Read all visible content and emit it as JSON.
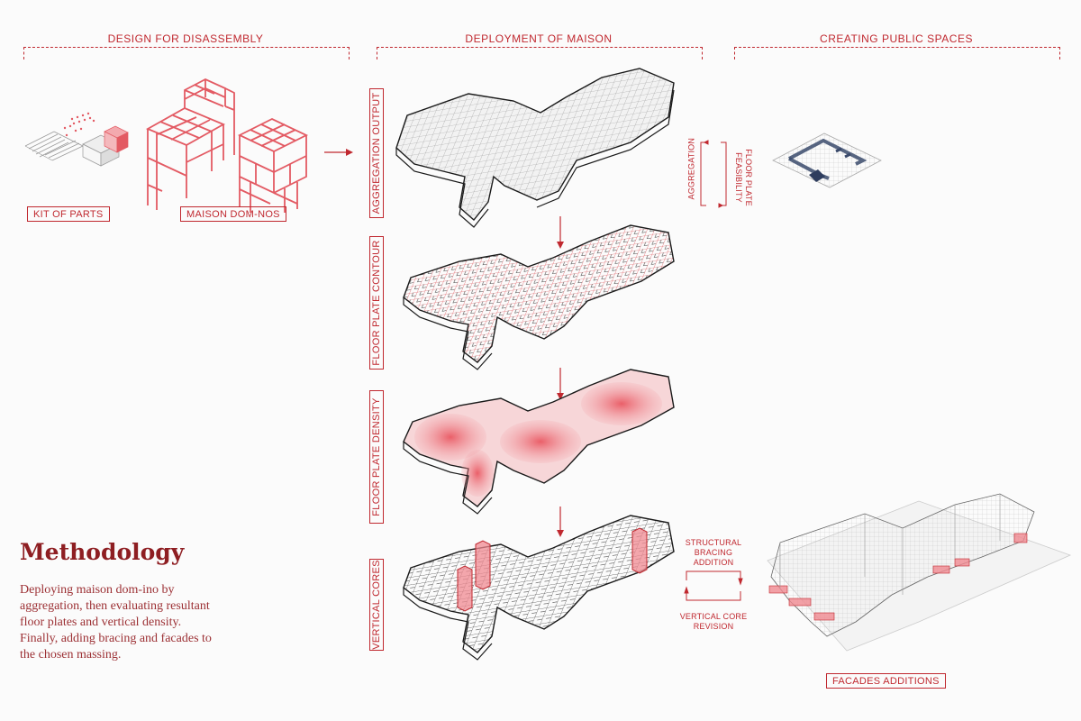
{
  "sections": {
    "design": "DESIGN FOR DISASSEMBLY",
    "deployment": "DEPLOYMENT OF MAISON",
    "public": "CREATING PUBLIC SPACES"
  },
  "labels": {
    "kit_of_parts": "KIT OF PARTS",
    "maison": "MAISON DOM-NOS",
    "facades": "FACADES ADDITIONS"
  },
  "steps": [
    {
      "label": "AGGREGATION OUTPUT"
    },
    {
      "label": "FLOOR PLATE CONTOUR"
    },
    {
      "label": "FLOOR PLATE DENSITY"
    },
    {
      "label": "VERTICAL CORES"
    }
  ],
  "feedback_loops": {
    "aggregation": "AGGREGATION",
    "floor_plate_feasibility": "FLOOR PLATE FEASIBILITY",
    "structural_bracing_line1": "STRUCTURAL",
    "structural_bracing_line2": "BRACING",
    "structural_bracing_line3": "ADDITION",
    "vertical_core_line1": "VERTICAL CORE",
    "vertical_core_line2": "REVISION"
  },
  "methodology": {
    "title": "Methodology",
    "text": "Deploying maison dom-ino by aggregation, then evaluating resultant floor plates and vertical density. Finally, adding bracing and facades to the chosen massing."
  },
  "colors": {
    "accent": "#c0282f",
    "title": "#8e1e22",
    "background": "#fbfbfb",
    "dark_blue": "#3a4a6b"
  }
}
